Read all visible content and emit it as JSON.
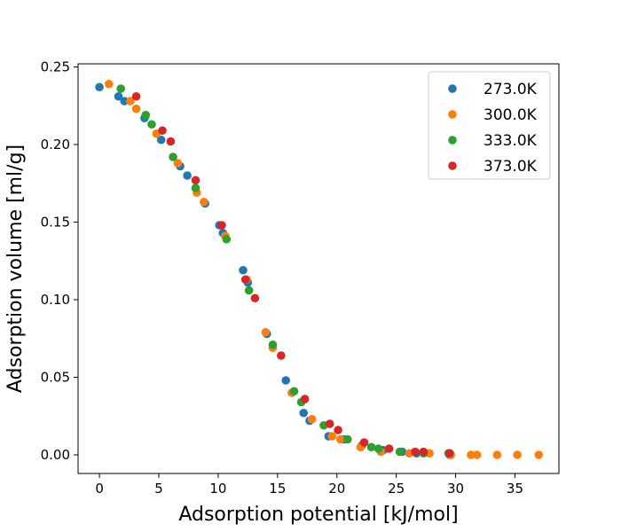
{
  "chart_data": {
    "type": "scatter",
    "title": "",
    "xlabel": "Adsorption potential [kJ/mol]",
    "ylabel": "Adsorption volume [ml/g]",
    "xlim": [
      -1.8,
      38.7
    ],
    "ylim": [
      -0.012,
      0.252
    ],
    "xticks": [
      0,
      5,
      10,
      15,
      20,
      25,
      30,
      35
    ],
    "yticks": [
      0.0,
      0.05,
      0.1,
      0.15,
      0.2,
      0.25
    ],
    "xtick_labels": [
      "0",
      "5",
      "10",
      "15",
      "20",
      "25",
      "30",
      "35"
    ],
    "ytick_labels": [
      "0.00",
      "0.05",
      "0.10",
      "0.15",
      "0.20",
      "0.25"
    ],
    "grid": false,
    "legend_position": "top-right",
    "series": [
      {
        "name": "273.0K",
        "color": "#1f77b4",
        "points": [
          [
            0.0,
            0.237
          ],
          [
            1.6,
            0.231
          ],
          [
            2.1,
            0.228
          ],
          [
            3.8,
            0.217
          ],
          [
            5.2,
            0.203
          ],
          [
            6.8,
            0.186
          ],
          [
            7.4,
            0.18
          ],
          [
            8.9,
            0.162
          ],
          [
            10.1,
            0.148
          ],
          [
            10.4,
            0.143
          ],
          [
            12.1,
            0.119
          ],
          [
            12.5,
            0.111
          ],
          [
            14.1,
            0.078
          ],
          [
            15.7,
            0.048
          ],
          [
            17.2,
            0.027
          ],
          [
            17.7,
            0.022
          ],
          [
            19.3,
            0.012
          ],
          [
            20.6,
            0.01
          ],
          [
            22.1,
            0.006
          ],
          [
            23.9,
            0.003
          ],
          [
            25.5,
            0.002
          ],
          [
            26.7,
            0.001
          ],
          [
            29.5,
            0.0
          ]
        ]
      },
      {
        "name": "300.0K",
        "color": "#ff7f0e",
        "points": [
          [
            0.8,
            0.239
          ],
          [
            2.6,
            0.228
          ],
          [
            3.1,
            0.223
          ],
          [
            4.8,
            0.207
          ],
          [
            6.6,
            0.188
          ],
          [
            8.2,
            0.169
          ],
          [
            8.8,
            0.163
          ],
          [
            10.6,
            0.141
          ],
          [
            12.4,
            0.113
          ],
          [
            14.0,
            0.079
          ],
          [
            14.6,
            0.069
          ],
          [
            16.2,
            0.04
          ],
          [
            17.9,
            0.023
          ],
          [
            19.6,
            0.012
          ],
          [
            20.3,
            0.01
          ],
          [
            22.0,
            0.005
          ],
          [
            23.7,
            0.002
          ],
          [
            26.1,
            0.001
          ],
          [
            27.8,
            0.001
          ],
          [
            29.6,
            0.0
          ],
          [
            31.3,
            0.0
          ],
          [
            31.8,
            0.0
          ],
          [
            33.5,
            0.0
          ],
          [
            35.2,
            0.0
          ],
          [
            37.0,
            0.0
          ]
        ]
      },
      {
        "name": "333.0K",
        "color": "#2ca02c",
        "points": [
          [
            1.8,
            0.236
          ],
          [
            3.9,
            0.219
          ],
          [
            4.4,
            0.213
          ],
          [
            6.2,
            0.192
          ],
          [
            8.1,
            0.172
          ],
          [
            10.7,
            0.139
          ],
          [
            12.6,
            0.106
          ],
          [
            14.6,
            0.071
          ],
          [
            16.4,
            0.041
          ],
          [
            17.0,
            0.034
          ],
          [
            18.9,
            0.019
          ],
          [
            20.9,
            0.01
          ],
          [
            22.9,
            0.005
          ],
          [
            23.5,
            0.004
          ],
          [
            25.3,
            0.002
          ],
          [
            27.3,
            0.001
          ],
          [
            29.4,
            0.001
          ]
        ]
      },
      {
        "name": "373.0K",
        "color": "#d62728",
        "points": [
          [
            3.1,
            0.231
          ],
          [
            5.3,
            0.209
          ],
          [
            6.0,
            0.202
          ],
          [
            8.1,
            0.177
          ],
          [
            10.3,
            0.148
          ],
          [
            12.3,
            0.113
          ],
          [
            13.1,
            0.101
          ],
          [
            15.3,
            0.064
          ],
          [
            17.3,
            0.036
          ],
          [
            19.4,
            0.02
          ],
          [
            20.1,
            0.016
          ],
          [
            22.3,
            0.008
          ],
          [
            24.4,
            0.004
          ],
          [
            26.6,
            0.002
          ],
          [
            27.3,
            0.002
          ],
          [
            29.5,
            0.001
          ]
        ]
      }
    ]
  }
}
